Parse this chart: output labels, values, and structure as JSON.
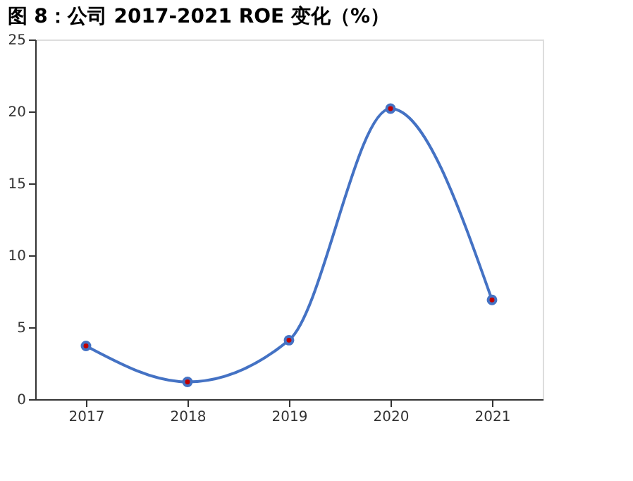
{
  "chart_data": {
    "type": "line",
    "title": "图 8：公司 2017-2021 ROE 变化（%）",
    "categories": [
      "2017",
      "2018",
      "2019",
      "2020",
      "2021"
    ],
    "series": [
      {
        "color": "#4472c4",
        "values": [
          3.7,
          1.2,
          4.1,
          20.2,
          6.9
        ]
      }
    ],
    "ylim": [
      0,
      25
    ],
    "yticks": [
      0,
      5,
      10,
      15,
      20,
      25
    ],
    "grid": false,
    "marker": "circle",
    "line_style": "solid"
  }
}
